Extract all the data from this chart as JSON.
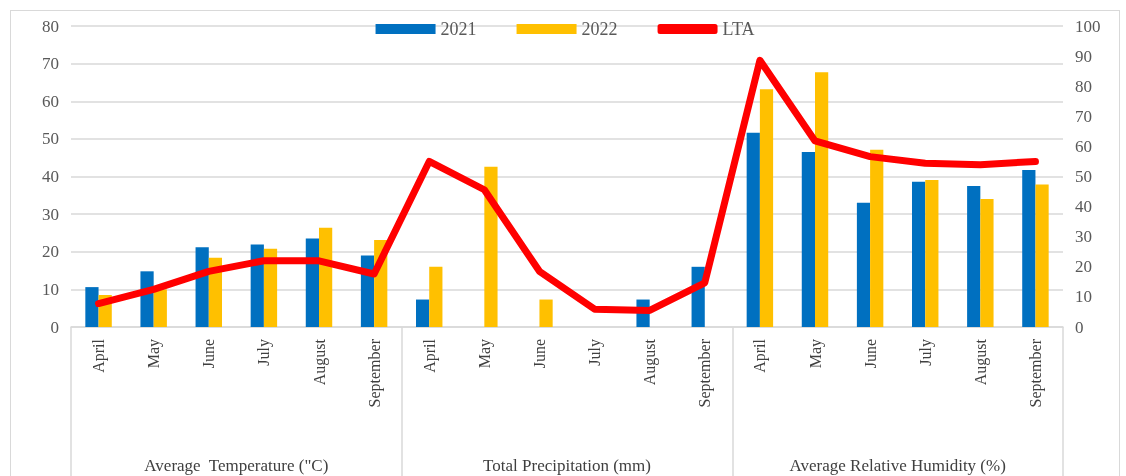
{
  "chart_data": {
    "type": "bar",
    "categories": [
      "April",
      "May",
      "June",
      "July",
      "August",
      "September",
      "April",
      "May",
      "June",
      "July",
      "August",
      "September",
      "April",
      "May",
      "June",
      "July",
      "August",
      "September"
    ],
    "series": [
      {
        "name": "2021",
        "color": "#0070c0",
        "values": [
          10.6,
          14.8,
          21.2,
          21.9,
          23.5,
          19.0,
          7.3,
          0,
          0,
          0,
          7.3,
          16.0,
          51.6,
          46.5,
          33.0,
          38.6,
          37.5,
          41.7
        ]
      },
      {
        "name": "2022",
        "color": "#ffc000",
        "values": [
          8.5,
          10,
          18.4,
          20.8,
          26.4,
          23.1,
          16.0,
          42.6,
          7.3,
          0,
          0,
          0,
          63.2,
          67.7,
          47.1,
          39.1,
          34.0,
          37.9
        ]
      },
      {
        "name": "LTA",
        "type": "line",
        "axis": "y2",
        "color": "#ff0000",
        "values": [
          7.8,
          12.5,
          18.5,
          22,
          22,
          17.6,
          55,
          45.6,
          18.5,
          5.9,
          5.5,
          14.7,
          88.6,
          61.8,
          56.6,
          54.4,
          53.9,
          55.0
        ]
      }
    ],
    "annotations": [
      "Average  Temperature (\"C)",
      "Total Precipitation (mm)",
      "Average Relative Humidity (%)"
    ],
    "ylim": [
      0,
      80
    ],
    "yticks": [
      0,
      10,
      20,
      30,
      40,
      50,
      60,
      70,
      80
    ],
    "y2lim": [
      0,
      100
    ],
    "y2ticks": [
      0,
      10,
      20,
      30,
      40,
      50,
      60,
      70,
      80,
      90,
      100
    ],
    "grid": "y",
    "legend": "top",
    "marker": "none",
    "line_style": "solid"
  }
}
